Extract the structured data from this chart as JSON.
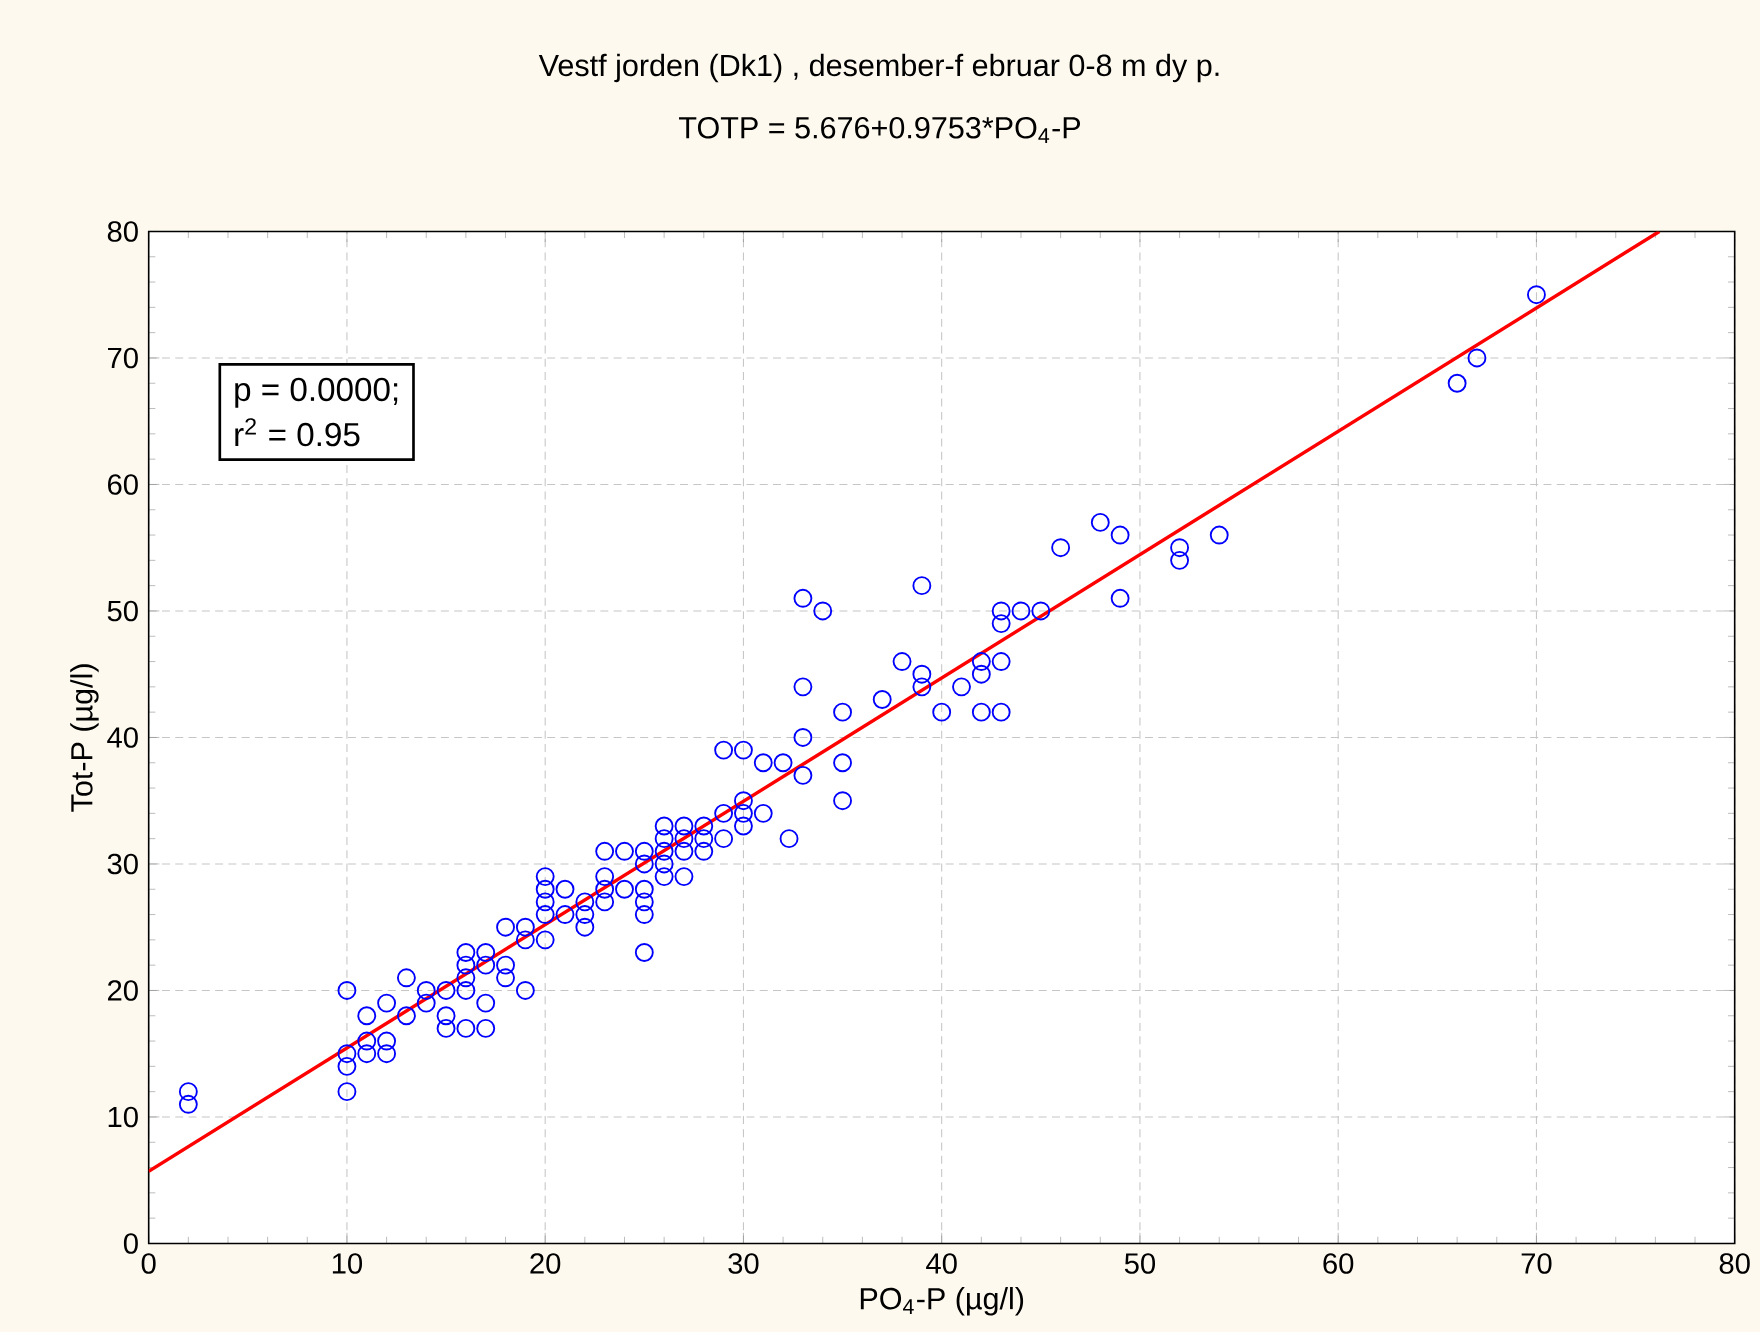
{
  "chart_data": {
    "type": "scatter",
    "title": "Vestf jorden (Dk1) , desember-f ebruar 0-8 m dy p.",
    "subtitle": "TOTP = 5.676+0.9753*PO$_{4}$-P",
    "xlabel": "PO$_{4}$-P (µg/l)",
    "ylabel": "Tot-P (µg/l)",
    "xlim": [
      0,
      80
    ],
    "ylim": [
      0,
      80
    ],
    "xticks": [
      0,
      10,
      20,
      30,
      40,
      50,
      60,
      70,
      80
    ],
    "yticks": [
      0,
      10,
      20,
      30,
      40,
      50,
      60,
      70,
      80
    ],
    "grid": true,
    "marker": "circle",
    "annotations": [
      "p = 0.0000;",
      "r$^{2}$ = 0.95"
    ],
    "series": [
      {
        "color": "#0000ff",
        "x": [
          2,
          2,
          10,
          10,
          10,
          10,
          11,
          11,
          11,
          12,
          12,
          12,
          13,
          13,
          14,
          14,
          15,
          15,
          15,
          16,
          16,
          16,
          16,
          16,
          17,
          17,
          17,
          17,
          18,
          18,
          18,
          19,
          19,
          19,
          20,
          20,
          20,
          20,
          20,
          21,
          21,
          22,
          22,
          22,
          23,
          23,
          23,
          23,
          24,
          24,
          25,
          25,
          25,
          25,
          25,
          25,
          26,
          26,
          26,
          26,
          26,
          27,
          27,
          27,
          27,
          28,
          28,
          28,
          29,
          29,
          29,
          30,
          30,
          30,
          30,
          31,
          31,
          32,
          32.3,
          33,
          33,
          33,
          33,
          34,
          35,
          35,
          35,
          37,
          38,
          39,
          39,
          39,
          40,
          41,
          42,
          42,
          42,
          43,
          43,
          43,
          43,
          44,
          45,
          46,
          48,
          49,
          49,
          52,
          52,
          54,
          66,
          67,
          70
        ],
        "values": [
          12,
          11,
          20,
          15,
          14,
          12,
          18,
          16,
          15,
          19,
          16,
          15,
          21,
          18,
          20,
          19,
          20,
          18,
          17,
          23,
          22,
          21,
          20,
          17,
          23,
          22,
          19,
          17,
          25,
          22,
          21,
          25,
          24,
          20,
          29,
          28,
          27,
          26,
          24,
          28,
          26,
          27,
          26,
          25,
          31,
          29,
          28,
          27,
          31,
          28,
          31,
          30,
          28,
          27,
          26,
          23,
          33,
          32,
          31,
          30,
          29,
          33,
          32,
          31,
          29,
          33,
          32,
          31,
          39,
          34,
          32,
          39,
          35,
          34,
          33,
          38,
          34,
          38,
          32,
          51,
          44,
          40,
          37,
          50,
          42,
          38,
          35,
          43,
          46,
          52,
          45,
          44,
          42,
          44,
          46,
          45,
          42,
          50,
          49,
          46,
          42,
          50,
          50,
          55,
          57,
          56,
          51,
          55,
          54,
          56,
          68,
          70,
          75
        ]
      },
      {
        "type": "line",
        "color": "#ff0000",
        "marker": "none",
        "x": [
          0,
          76.2
        ],
        "values": [
          5.7,
          80
        ]
      }
    ]
  }
}
